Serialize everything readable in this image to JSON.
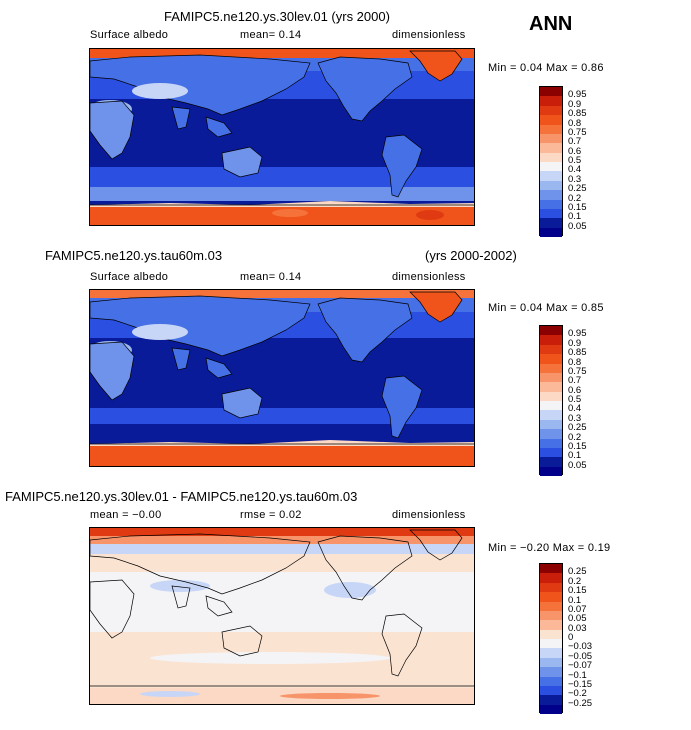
{
  "season": "ANN",
  "panels": [
    {
      "title": "FAMIPC5.ne120.ys.30lev.01 (yrs 2000)",
      "title_right": "",
      "left_label": "Surface albedo",
      "mid_label": "mean=   0.14",
      "mid_label2": "",
      "units": "dimensionless",
      "minmax": "Min =   0.04 Max =   0.86"
    },
    {
      "title": "FAMIPC5.ne120.ys.tau60m.03",
      "title_right": "(yrs 2000-2002)",
      "left_label": "Surface albedo",
      "mid_label": "mean=   0.14",
      "mid_label2": "",
      "units": "dimensionless",
      "minmax": "Min =   0.04 Max =   0.85"
    },
    {
      "title": "FAMIPC5.ne120.ys.30lev.01 - FAMIPC5.ne120.ys.tau60m.03",
      "title_right": "",
      "left_label": "mean =  −0.00",
      "mid_label": "rmse =   0.02",
      "mid_label2": "",
      "units": "dimensionless",
      "minmax": "Min =  −0.20 Max =   0.19"
    }
  ],
  "chart_data": [
    {
      "type": "heatmap",
      "title": "FAMIPC5.ne120.ys.30lev.01 (yrs 2000)",
      "variable": "Surface albedo",
      "units": "dimensionless",
      "mean": 0.14,
      "min": 0.04,
      "max": 0.86,
      "levels": [
        "0.95",
        "0.9",
        "0.85",
        "0.8",
        "0.75",
        "0.7",
        "0.6",
        "0.5",
        "0.4",
        "0.3",
        "0.25",
        "0.2",
        "0.15",
        "0.1",
        "0.05"
      ],
      "colors": [
        "#8b0000",
        "#c81e0a",
        "#e03a12",
        "#f0541a",
        "#f5733a",
        "#f8946a",
        "#fbb99a",
        "#fbd9c4",
        "#f4f4f6",
        "#c7d6f7",
        "#9bb7f0",
        "#6f92ea",
        "#4670e6",
        "#2b4fe0",
        "#0a1b9a",
        "#00008b"
      ]
    },
    {
      "type": "heatmap",
      "title": "FAMIPC5.ne120.ys.tau60m.03 (yrs 2000-2002)",
      "variable": "Surface albedo",
      "units": "dimensionless",
      "mean": 0.14,
      "min": 0.04,
      "max": 0.85,
      "levels": [
        "0.95",
        "0.9",
        "0.85",
        "0.8",
        "0.75",
        "0.7",
        "0.6",
        "0.5",
        "0.4",
        "0.3",
        "0.25",
        "0.2",
        "0.15",
        "0.1",
        "0.05"
      ],
      "colors": [
        "#8b0000",
        "#c81e0a",
        "#e03a12",
        "#f0541a",
        "#f5733a",
        "#f8946a",
        "#fbb99a",
        "#fbd9c4",
        "#f4f4f6",
        "#c7d6f7",
        "#9bb7f0",
        "#6f92ea",
        "#4670e6",
        "#2b4fe0",
        "#0a1b9a",
        "#00008b"
      ]
    },
    {
      "type": "heatmap",
      "title": "FAMIPC5.ne120.ys.30lev.01 - FAMIPC5.ne120.ys.tau60m.03",
      "units": "dimensionless",
      "mean": -0.0,
      "rmse": 0.02,
      "min": -0.2,
      "max": 0.19,
      "levels": [
        "0.25",
        "0.2",
        "0.15",
        "0.1",
        "0.07",
        "0.05",
        "0.03",
        "0",
        "−0.03",
        "−0.05",
        "−0.07",
        "−0.1",
        "−0.15",
        "−0.2",
        "−0.25"
      ],
      "colors": [
        "#8b0000",
        "#c81e0a",
        "#e03a12",
        "#f0541a",
        "#f5733a",
        "#f8946a",
        "#fbb99a",
        "#fbe3d2",
        "#f4f4f6",
        "#c7d6f7",
        "#9bb7f0",
        "#6f92ea",
        "#4670e6",
        "#2b4fe0",
        "#0a1b9a",
        "#00008b"
      ]
    }
  ]
}
